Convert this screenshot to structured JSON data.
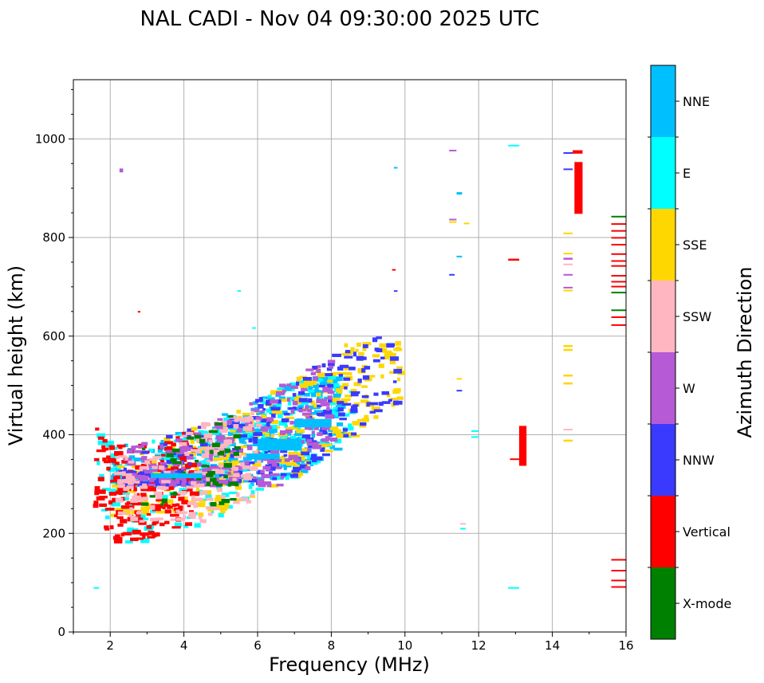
{
  "chart_data": {
    "type": "scatter",
    "title": "NAL CADI - Nov 04 09:30:00 2025 UTC",
    "xlabel": "Frequency (MHz)",
    "ylabel": "Virtual height (km)",
    "xlim": [
      1,
      16
    ],
    "ylim": [
      0,
      1120
    ],
    "xticks": [
      2,
      4,
      6,
      8,
      10,
      12,
      14,
      16
    ],
    "yticks": [
      0,
      200,
      400,
      600,
      800,
      1000
    ],
    "grid": true,
    "colorbar": {
      "label": "Azimuth Direction",
      "categories": [
        {
          "name": "X-mode",
          "color": "#008000"
        },
        {
          "name": "Vertical",
          "color": "#ff0000"
        },
        {
          "name": "NNW",
          "color": "#3a3aff"
        },
        {
          "name": "W",
          "color": "#b65ad6"
        },
        {
          "name": "SSW",
          "color": "#ffb6c1"
        },
        {
          "name": "SSE",
          "color": "#ffd700"
        },
        {
          "name": "E",
          "color": "#00ffff"
        },
        {
          "name": "NNE",
          "color": "#00bfff"
        }
      ]
    },
    "segments": [
      {
        "dir": "Vertical",
        "f0": 14.55,
        "f1": 14.82,
        "h0": 970,
        "h1": 977
      },
      {
        "dir": "Vertical",
        "f0": 14.6,
        "f1": 14.82,
        "h0": 848,
        "h1": 953
      },
      {
        "dir": "NNW",
        "f0": 14.3,
        "f1": 14.55,
        "h0": 970,
        "h1": 973
      },
      {
        "dir": "NNW",
        "f0": 14.3,
        "f1": 14.55,
        "h0": 937,
        "h1": 940
      },
      {
        "dir": "Vertical",
        "f0": 13.1,
        "f1": 13.3,
        "h0": 337,
        "h1": 418
      },
      {
        "dir": "Vertical",
        "f0": 12.85,
        "f1": 13.1,
        "h0": 350,
        "h1": 352
      },
      {
        "dir": "Vertical",
        "f0": 12.8,
        "f1": 13.1,
        "h0": 753,
        "h1": 757
      },
      {
        "dir": "E",
        "f0": 12.8,
        "f1": 13.1,
        "h0": 985,
        "h1": 988
      },
      {
        "dir": "E",
        "f0": 12.8,
        "f1": 13.1,
        "h0": 88,
        "h1": 91
      },
      {
        "dir": "W",
        "f0": 11.2,
        "f1": 11.4,
        "h0": 975,
        "h1": 978
      },
      {
        "dir": "NNE",
        "f0": 11.4,
        "f1": 11.55,
        "h0": 887,
        "h1": 892
      },
      {
        "dir": "W",
        "f0": 11.2,
        "f1": 11.4,
        "h0": 835,
        "h1": 838
      },
      {
        "dir": "SSE",
        "f0": 11.2,
        "f1": 11.4,
        "h0": 830,
        "h1": 833
      },
      {
        "dir": "SSE",
        "f0": 11.6,
        "f1": 11.75,
        "h0": 827,
        "h1": 830
      },
      {
        "dir": "NNE",
        "f0": 11.4,
        "f1": 11.55,
        "h0": 760,
        "h1": 763
      },
      {
        "dir": "NNW",
        "f0": 11.2,
        "f1": 11.35,
        "h0": 724,
        "h1": 726
      },
      {
        "dir": "SSE",
        "f0": 11.4,
        "f1": 11.55,
        "h0": 512,
        "h1": 515
      },
      {
        "dir": "NNW",
        "f0": 11.4,
        "f1": 11.55,
        "h0": 488,
        "h1": 491
      },
      {
        "dir": "E",
        "f0": 11.8,
        "f1": 12.0,
        "h0": 406,
        "h1": 409
      },
      {
        "dir": "E",
        "f0": 11.8,
        "f1": 12.0,
        "h0": 394,
        "h1": 397
      },
      {
        "dir": "SSW",
        "f0": 11.5,
        "f1": 11.65,
        "h0": 218,
        "h1": 221
      },
      {
        "dir": "E",
        "f0": 11.5,
        "f1": 11.65,
        "h0": 208,
        "h1": 211
      },
      {
        "dir": "SSE",
        "f0": 14.3,
        "f1": 14.55,
        "h0": 808,
        "h1": 810
      },
      {
        "dir": "SSE",
        "f0": 14.3,
        "f1": 14.55,
        "h0": 767,
        "h1": 769
      },
      {
        "dir": "W",
        "f0": 14.3,
        "f1": 14.55,
        "h0": 755,
        "h1": 759
      },
      {
        "dir": "SSW",
        "f0": 14.3,
        "f1": 14.55,
        "h0": 745,
        "h1": 747
      },
      {
        "dir": "W",
        "f0": 14.3,
        "f1": 14.55,
        "h0": 724,
        "h1": 726
      },
      {
        "dir": "W",
        "f0": 14.3,
        "f1": 14.55,
        "h0": 697,
        "h1": 700
      },
      {
        "dir": "SSE",
        "f0": 14.3,
        "f1": 14.55,
        "h0": 691,
        "h1": 694
      },
      {
        "dir": "SSE",
        "f0": 14.3,
        "f1": 14.55,
        "h0": 578,
        "h1": 582
      },
      {
        "dir": "SSE",
        "f0": 14.3,
        "f1": 14.55,
        "h0": 570,
        "h1": 574
      },
      {
        "dir": "SSE",
        "f0": 14.3,
        "f1": 14.55,
        "h0": 518,
        "h1": 522
      },
      {
        "dir": "SSE",
        "f0": 14.3,
        "f1": 14.55,
        "h0": 502,
        "h1": 506
      },
      {
        "dir": "SSW",
        "f0": 14.3,
        "f1": 14.55,
        "h0": 409,
        "h1": 412
      },
      {
        "dir": "SSE",
        "f0": 14.3,
        "f1": 14.55,
        "h0": 386,
        "h1": 390
      },
      {
        "dir": "X-mode",
        "f0": 15.6,
        "f1": 16.0,
        "h0": 842,
        "h1": 844
      },
      {
        "dir": "Vertical",
        "f0": 15.6,
        "f1": 16.0,
        "h0": 827,
        "h1": 829
      },
      {
        "dir": "Vertical",
        "f0": 15.6,
        "f1": 16.0,
        "h0": 813,
        "h1": 815
      },
      {
        "dir": "Vertical",
        "f0": 15.6,
        "f1": 16.0,
        "h0": 799,
        "h1": 801
      },
      {
        "dir": "Vertical",
        "f0": 15.6,
        "f1": 16.0,
        "h0": 785,
        "h1": 787
      },
      {
        "dir": "Vertical",
        "f0": 15.6,
        "f1": 16.0,
        "h0": 766,
        "h1": 768
      },
      {
        "dir": "Vertical",
        "f0": 15.6,
        "f1": 16.0,
        "h0": 752,
        "h1": 754
      },
      {
        "dir": "Vertical",
        "f0": 15.6,
        "f1": 16.0,
        "h0": 742,
        "h1": 744
      },
      {
        "dir": "Vertical",
        "f0": 15.6,
        "f1": 16.0,
        "h0": 722,
        "h1": 724
      },
      {
        "dir": "Vertical",
        "f0": 15.6,
        "f1": 16.0,
        "h0": 710,
        "h1": 712
      },
      {
        "dir": "Vertical",
        "f0": 15.6,
        "f1": 16.0,
        "h0": 700,
        "h1": 702
      },
      {
        "dir": "X-mode",
        "f0": 15.6,
        "f1": 16.0,
        "h0": 688,
        "h1": 690
      },
      {
        "dir": "X-mode",
        "f0": 15.6,
        "f1": 16.0,
        "h0": 652,
        "h1": 654
      },
      {
        "dir": "Vertical",
        "f0": 15.6,
        "f1": 16.0,
        "h0": 638,
        "h1": 640
      },
      {
        "dir": "Vertical",
        "f0": 15.6,
        "f1": 16.0,
        "h0": 622,
        "h1": 624
      },
      {
        "dir": "Vertical",
        "f0": 15.6,
        "f1": 16.0,
        "h0": 146,
        "h1": 148
      },
      {
        "dir": "Vertical",
        "f0": 15.6,
        "f1": 16.0,
        "h0": 124,
        "h1": 126
      },
      {
        "dir": "Vertical",
        "f0": 15.6,
        "f1": 16.0,
        "h0": 104,
        "h1": 106
      },
      {
        "dir": "Vertical",
        "f0": 15.6,
        "f1": 16.0,
        "h0": 91,
        "h1": 93
      },
      {
        "dir": "NNE",
        "f0": 9.7,
        "f1": 9.8,
        "h0": 940,
        "h1": 943
      },
      {
        "dir": "Vertical",
        "f0": 9.65,
        "f1": 9.75,
        "h0": 733,
        "h1": 736
      },
      {
        "dir": "NNW",
        "f0": 9.7,
        "f1": 9.8,
        "h0": 690,
        "h1": 693
      },
      {
        "dir": "E",
        "f0": 5.45,
        "f1": 5.55,
        "h0": 690,
        "h1": 693
      },
      {
        "dir": "E",
        "f0": 5.85,
        "f1": 5.95,
        "h0": 615,
        "h1": 618
      },
      {
        "dir": "W",
        "f0": 2.25,
        "f1": 2.35,
        "h0": 932,
        "h1": 940
      },
      {
        "dir": "Vertical",
        "f0": 2.75,
        "f1": 2.82,
        "h0": 648,
        "h1": 651
      },
      {
        "dir": "E",
        "f0": 1.55,
        "f1": 1.7,
        "h0": 88,
        "h1": 91
      },
      {
        "dir": "NNE",
        "f0": 5.7,
        "f1": 6.6,
        "h0": 350,
        "h1": 362
      },
      {
        "dir": "NNE",
        "f0": 6.0,
        "f1": 7.2,
        "h0": 368,
        "h1": 392
      },
      {
        "dir": "NNE",
        "f0": 7.0,
        "f1": 8.0,
        "h0": 415,
        "h1": 432
      },
      {
        "dir": "NNE",
        "f0": 3.1,
        "f1": 4.5,
        "h0": 312,
        "h1": 322
      }
    ],
    "point_clusters": [
      {
        "dir": "NNE",
        "f0": 2.0,
        "f1": 8.2,
        "h0": 300,
        "h1": 520,
        "n": 420,
        "seed": 11
      },
      {
        "dir": "E",
        "f0": 1.6,
        "f1": 8.5,
        "h0": 180,
        "h1": 520,
        "n": 240,
        "seed": 23
      },
      {
        "dir": "SSE",
        "f0": 2.0,
        "f1": 9.8,
        "h0": 240,
        "h1": 590,
        "n": 300,
        "seed": 37
      },
      {
        "dir": "Vertical",
        "f0": 1.5,
        "f1": 4.2,
        "h0": 150,
        "h1": 590,
        "n": 190,
        "seed": 41
      },
      {
        "dir": "NNW",
        "f0": 2.2,
        "f1": 9.7,
        "h0": 300,
        "h1": 600,
        "n": 260,
        "seed": 53
      },
      {
        "dir": "W",
        "f0": 2.3,
        "f1": 8.0,
        "h0": 300,
        "h1": 640,
        "n": 220,
        "seed": 61
      },
      {
        "dir": "SSW",
        "f0": 2.1,
        "f1": 6.0,
        "h0": 225,
        "h1": 450,
        "n": 160,
        "seed": 71
      },
      {
        "dir": "X-mode",
        "f0": 2.8,
        "f1": 5.5,
        "h0": 260,
        "h1": 540,
        "n": 45,
        "seed": 83
      }
    ]
  }
}
